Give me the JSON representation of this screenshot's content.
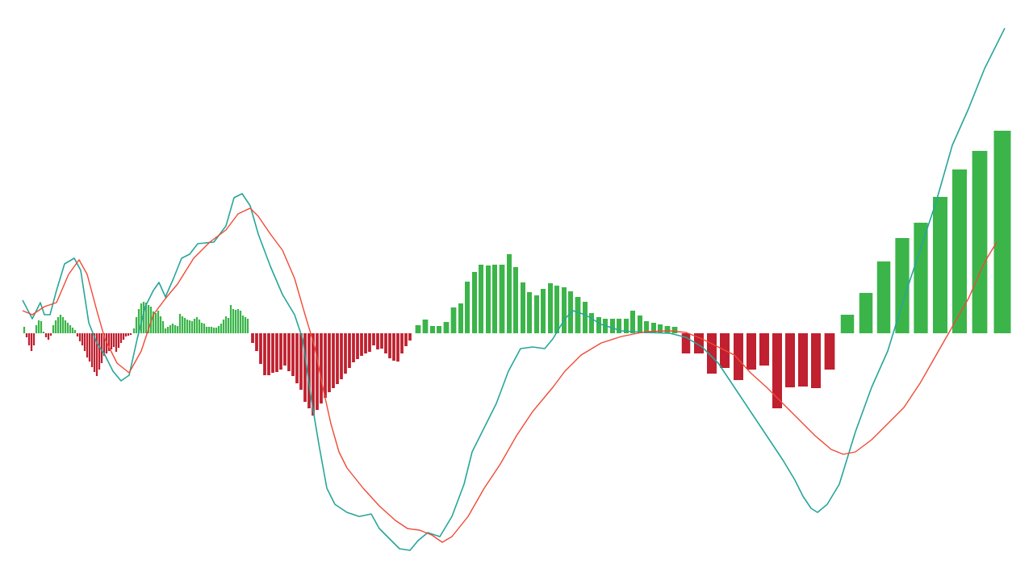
{
  "chart_data": {
    "type": "macd",
    "xlim": [
      0,
      1280
    ],
    "ylim": [
      -30,
      40
    ],
    "histogram": {
      "positive_color": "#3bb54a",
      "negative_color": "#c0202f",
      "x": [
        30,
        33,
        36,
        39,
        42,
        45,
        48,
        51,
        54,
        57,
        60,
        63,
        66,
        69,
        72,
        75,
        78,
        81,
        84,
        87,
        90,
        93,
        96,
        99,
        102,
        105,
        108,
        111,
        114,
        117,
        120,
        123,
        126,
        129,
        132,
        135,
        138,
        141,
        144,
        147,
        150,
        153,
        156,
        159,
        162,
        166,
        169,
        172,
        175,
        178,
        181,
        184,
        187,
        190,
        193,
        196,
        199,
        202,
        205,
        208,
        211,
        214,
        217,
        220,
        223,
        226,
        229,
        232,
        235,
        238,
        241,
        244,
        247,
        250,
        253,
        256,
        259,
        262,
        265,
        268,
        271,
        274,
        277,
        280,
        283,
        286,
        289,
        292,
        295,
        298,
        301,
        304,
        307,
        313,
        318,
        323,
        328,
        333,
        338,
        343,
        348,
        353,
        358,
        363,
        368,
        373,
        378,
        383,
        388,
        393,
        398,
        403,
        408,
        413,
        418,
        423,
        428,
        433,
        438,
        443,
        448,
        453,
        458,
        463,
        468,
        473,
        478,
        483,
        488,
        493,
        498,
        503,
        508,
        518,
        527,
        536,
        544,
        553,
        562,
        571,
        579,
        588,
        596,
        605,
        613,
        622,
        631,
        639,
        648,
        656,
        665,
        673,
        682,
        690,
        699,
        707,
        716,
        725,
        733,
        742,
        750,
        759,
        767,
        776,
        784,
        793,
        801,
        810,
        818,
        827,
        836,
        850,
        866,
        882,
        898,
        915,
        931,
        947,
        963,
        979,
        995,
        1011,
        1028,
        1050,
        1073,
        1095,
        1118,
        1141,
        1165,
        1189,
        1214,
        1242
      ],
      "values": [
        0.8,
        -0.5,
        -1.5,
        -2.2,
        -1.5,
        1.0,
        1.6,
        1.5,
        0.2,
        -0.5,
        -0.8,
        -0.3,
        1.0,
        1.6,
        2.0,
        2.3,
        2.0,
        1.6,
        1.3,
        1.0,
        0.7,
        0.4,
        -0.4,
        -1.0,
        -1.5,
        -2.2,
        -3.0,
        -3.5,
        -4.2,
        -4.8,
        -5.3,
        -4.5,
        -3.7,
        -2.8,
        -2.5,
        -2.2,
        -2.0,
        -1.7,
        -2.3,
        -1.8,
        -1.2,
        -0.8,
        -0.4,
        -0.3,
        -0.2,
        0.6,
        2.0,
        3.0,
        3.7,
        3.9,
        3.8,
        3.5,
        3.3,
        2.7,
        2.5,
        2.8,
        2.1,
        1.5,
        0.6,
        0.8,
        1.0,
        1.2,
        1.0,
        0.9,
        2.4,
        2.1,
        1.9,
        1.7,
        1.6,
        1.5,
        1.8,
        2.0,
        1.7,
        1.3,
        1.2,
        0.8,
        0.8,
        0.8,
        0.7,
        0.7,
        0.9,
        1.2,
        1.7,
        2.1,
        1.9,
        3.5,
        3.0,
        2.9,
        3.0,
        2.8,
        2.2,
        2.0,
        1.8,
        -1.2,
        -2.2,
        -3.8,
        -5.2,
        -5.2,
        -4.9,
        -4.8,
        -4.5,
        -4.0,
        -4.7,
        -5.3,
        -6.2,
        -7.0,
        -8.5,
        -9.3,
        -10.2,
        -9.5,
        -8.7,
        -8.0,
        -7.3,
        -6.8,
        -6.3,
        -5.7,
        -5.0,
        -4.3,
        -3.6,
        -3.2,
        -2.8,
        -2.5,
        -2.3,
        -1.5,
        -2.0,
        -1.9,
        -2.5,
        -3.1,
        -3.4,
        -3.5,
        -2.5,
        -1.6,
        -0.9,
        1.0,
        1.7,
        0.9,
        0.9,
        1.4,
        3.2,
        3.7,
        6.4,
        7.6,
        8.5,
        8.4,
        8.5,
        8.5,
        9.8,
        8.2,
        6.3,
        5.1,
        4.7,
        5.5,
        6.2,
        5.9,
        5.7,
        5.2,
        4.5,
        3.9,
        2.5,
        2.0,
        1.8,
        1.8,
        1.8,
        1.8,
        2.8,
        2.2,
        1.5,
        1.3,
        1.1,
        0.9,
        0.8,
        -2.5,
        -2.5,
        -5.0,
        -4.3,
        -5.8,
        -4.5,
        -4.0,
        -9.3,
        -6.7,
        -6.6,
        -6.8,
        -4.5,
        2.3,
        5.0,
        8.9,
        11.8,
        13.7,
        16.9,
        20.3,
        22.6,
        25.1
      ]
    },
    "series": [
      {
        "color": "#26a69a",
        "x": [
          28,
          40,
          50,
          55,
          62,
          70,
          80,
          92,
          100,
          110,
          120,
          130,
          140,
          150,
          160,
          170,
          180,
          190,
          197,
          205,
          215,
          225,
          235,
          245,
          265,
          280,
          290,
          300,
          310,
          320,
          335,
          350,
          365,
          375,
          385,
          395,
          405,
          415,
          430,
          445,
          460,
          470,
          485,
          495,
          508,
          518,
          530,
          545,
          560,
          575,
          585,
          600,
          615,
          630,
          645,
          660,
          675,
          685,
          700,
          710,
          725,
          745,
          770,
          800,
          830,
          850,
          870,
          890,
          910,
          930,
          950,
          970,
          985,
          995,
          1005,
          1013,
          1025,
          1040,
          1060,
          1080,
          1100,
          1120,
          1140,
          1160,
          1180,
          1200,
          1220,
          1245
        ],
        "values": [
          4.1,
          1.8,
          3.8,
          2.3,
          2.3,
          5.3,
          8.6,
          9.3,
          7.8,
          1.3,
          -1.2,
          -2.7,
          -4.7,
          -5.9,
          -5.2,
          -0.7,
          3.3,
          5.3,
          6.3,
          4.5,
          6.8,
          9.3,
          9.8,
          11.1,
          11.3,
          13.3,
          16.8,
          17.3,
          15.8,
          12.3,
          8.3,
          4.8,
          2.3,
          -0.7,
          -7.7,
          -13.7,
          -19.2,
          -21.2,
          -22.2,
          -22.7,
          -22.4,
          -24.2,
          -25.7,
          -26.7,
          -26.9,
          -25.7,
          -24.7,
          -25.2,
          -22.7,
          -18.7,
          -14.7,
          -11.7,
          -8.7,
          -4.7,
          -1.9,
          -1.7,
          -1.9,
          -0.7,
          1.8,
          2.8,
          2.3,
          1.1,
          0.3,
          0.1,
          0,
          -0.5,
          -1.7,
          -3.7,
          -6.7,
          -9.7,
          -12.7,
          -15.7,
          -18.2,
          -20.2,
          -21.7,
          -22.2,
          -21.2,
          -18.7,
          -12.2,
          -6.7,
          -2.2,
          4.3,
          10.3,
          16.3,
          23.3,
          27.8,
          32.8,
          37.8
        ]
      },
      {
        "color": "#ef4a35",
        "x": [
          28,
          40,
          55,
          70,
          85,
          98,
          108,
          120,
          130,
          145,
          160,
          175,
          190,
          205,
          220,
          240,
          260,
          280,
          295,
          310,
          320,
          335,
          350,
          365,
          378,
          390,
          400,
          410,
          420,
          430,
          450,
          470,
          490,
          505,
          520,
          535,
          548,
          560,
          580,
          600,
          620,
          640,
          660,
          685,
          700,
          720,
          745,
          770,
          800,
          830,
          850,
          870,
          890,
          910,
          930,
          950,
          970,
          990,
          1010,
          1030,
          1045,
          1060,
          1080,
          1100,
          1120,
          1140,
          1160,
          1180,
          1200,
          1220,
          1235
        ],
        "values": [
          2.8,
          2.3,
          3.3,
          3.8,
          7.3,
          9.1,
          7.3,
          2.8,
          -0.7,
          -3.7,
          -4.9,
          -2.2,
          2.3,
          4.3,
          6.1,
          9.3,
          11.3,
          12.8,
          14.8,
          15.5,
          14.5,
          12.3,
          10.3,
          6.8,
          2.3,
          -1.7,
          -6.7,
          -11.2,
          -14.7,
          -16.7,
          -19.2,
          -21.4,
          -23.2,
          -24.2,
          -24.4,
          -25,
          -25.9,
          -25.2,
          -22.7,
          -19.2,
          -16.2,
          -12.7,
          -9.7,
          -6.7,
          -4.7,
          -2.7,
          -1.2,
          -0.4,
          0.2,
          0.3,
          0.1,
          -0.7,
          -1.7,
          -2.7,
          -4.9,
          -6.7,
          -8.7,
          -10.7,
          -12.7,
          -14.4,
          -15,
          -14.7,
          -13.2,
          -11.2,
          -9.2,
          -6.2,
          -2.7,
          0.8,
          4.3,
          8.8,
          11.3
        ]
      }
    ]
  }
}
